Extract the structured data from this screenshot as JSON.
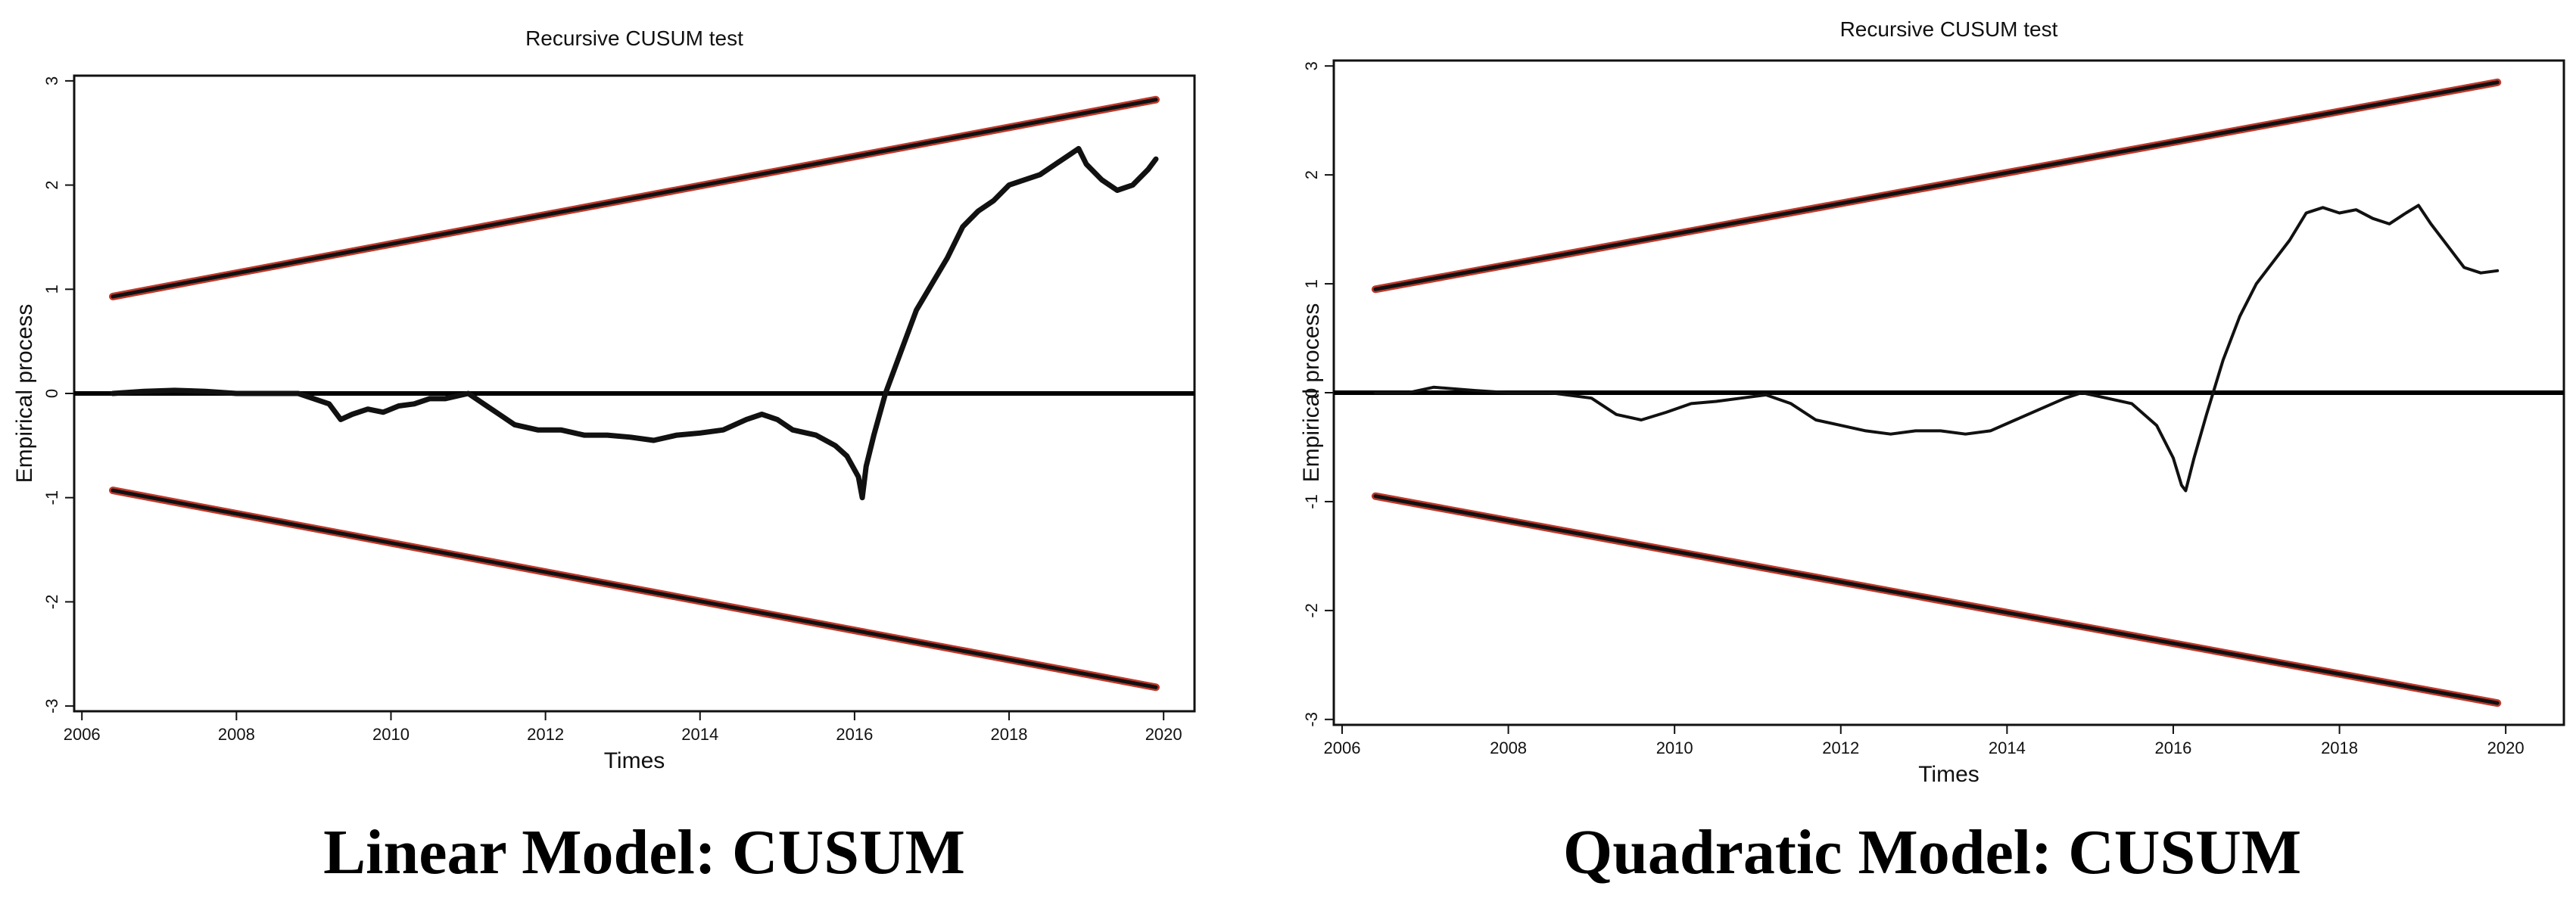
{
  "captions": [
    "Linear Model: CUSUM",
    "Quadratic Model: CUSUM"
  ],
  "chart_data": [
    {
      "type": "line",
      "title": "Recursive CUSUM test",
      "xlabel": "Times",
      "ylabel": "Empirical process",
      "xlim": [
        2005.9,
        2020.4
      ],
      "ylim": [
        -3.05,
        3.05
      ],
      "x_ticks": [
        2006,
        2008,
        2010,
        2012,
        2014,
        2016,
        2018,
        2020
      ],
      "y_ticks": [
        -3,
        -2,
        -1,
        0,
        1,
        2,
        3
      ],
      "zero_line": 0,
      "boundary_color": "#c0392b",
      "series": [
        {
          "role": "process",
          "color": "#111111",
          "x": [
            2006.4,
            2006.8,
            2007.2,
            2007.6,
            2008.0,
            2008.4,
            2008.8,
            2009.0,
            2009.2,
            2009.35,
            2009.5,
            2009.7,
            2009.9,
            2010.1,
            2010.3,
            2010.5,
            2010.7,
            2011.0,
            2011.2,
            2011.4,
            2011.6,
            2011.9,
            2012.2,
            2012.5,
            2012.8,
            2013.1,
            2013.4,
            2013.7,
            2014.0,
            2014.3,
            2014.6,
            2014.8,
            2015.0,
            2015.2,
            2015.5,
            2015.75,
            2015.9,
            2016.05,
            2016.1,
            2016.15,
            2016.25,
            2016.4,
            2016.6,
            2016.8,
            2017.0,
            2017.2,
            2017.4,
            2017.6,
            2017.8,
            2018.0,
            2018.2,
            2018.4,
            2018.6,
            2018.8,
            2018.9,
            2019.0,
            2019.2,
            2019.4,
            2019.6,
            2019.8,
            2019.9
          ],
          "y": [
            0.0,
            0.02,
            0.03,
            0.02,
            0.0,
            0.0,
            0.0,
            -0.05,
            -0.1,
            -0.25,
            -0.2,
            -0.15,
            -0.18,
            -0.12,
            -0.1,
            -0.05,
            -0.05,
            0.0,
            -0.1,
            -0.2,
            -0.3,
            -0.35,
            -0.35,
            -0.4,
            -0.4,
            -0.42,
            -0.45,
            -0.4,
            -0.38,
            -0.35,
            -0.25,
            -0.2,
            -0.25,
            -0.35,
            -0.4,
            -0.5,
            -0.6,
            -0.8,
            -1.0,
            -0.7,
            -0.4,
            0.0,
            0.4,
            0.8,
            1.05,
            1.3,
            1.6,
            1.75,
            1.85,
            2.0,
            2.05,
            2.1,
            2.2,
            2.3,
            2.35,
            2.2,
            2.05,
            1.95,
            2.0,
            2.15,
            2.25
          ]
        },
        {
          "role": "upper-boundary",
          "color": "#111111",
          "x": [
            2006.4,
            2019.9
          ],
          "y": [
            0.93,
            2.82
          ]
        },
        {
          "role": "lower-boundary",
          "color": "#111111",
          "x": [
            2006.4,
            2019.9
          ],
          "y": [
            -0.93,
            -2.82
          ]
        }
      ]
    },
    {
      "type": "line",
      "title": "Recursive CUSUM test",
      "xlabel": "Times",
      "ylabel": "Empirical process",
      "xlim": [
        2005.9,
        2020.7
      ],
      "ylim": [
        -3.05,
        3.05
      ],
      "x_ticks": [
        2006,
        2008,
        2010,
        2012,
        2014,
        2016,
        2018,
        2020
      ],
      "y_ticks": [
        -3,
        -2,
        -1,
        0,
        1,
        2,
        3
      ],
      "zero_line": 0,
      "boundary_color": "#c0392b",
      "series": [
        {
          "role": "process",
          "color": "#111111",
          "x": [
            2006.4,
            2006.8,
            2007.1,
            2007.6,
            2008.0,
            2008.5,
            2009.0,
            2009.3,
            2009.6,
            2009.9,
            2010.2,
            2010.5,
            2010.8,
            2011.1,
            2011.4,
            2011.7,
            2012.0,
            2012.3,
            2012.6,
            2012.9,
            2013.2,
            2013.5,
            2013.8,
            2014.1,
            2014.4,
            2014.7,
            2014.9,
            2015.2,
            2015.5,
            2015.8,
            2016.0,
            2016.1,
            2016.15,
            2016.25,
            2016.4,
            2016.6,
            2016.8,
            2017.0,
            2017.2,
            2017.4,
            2017.6,
            2017.8,
            2018.0,
            2018.2,
            2018.4,
            2018.6,
            2018.8,
            2018.95,
            2019.1,
            2019.3,
            2019.5,
            2019.7,
            2019.9
          ],
          "y": [
            0.0,
            0.0,
            0.05,
            0.02,
            0.0,
            0.0,
            -0.05,
            -0.2,
            -0.25,
            -0.18,
            -0.1,
            -0.08,
            -0.05,
            -0.02,
            -0.1,
            -0.25,
            -0.3,
            -0.35,
            -0.38,
            -0.35,
            -0.35,
            -0.38,
            -0.35,
            -0.25,
            -0.15,
            -0.05,
            0.0,
            -0.05,
            -0.1,
            -0.3,
            -0.6,
            -0.85,
            -0.9,
            -0.6,
            -0.2,
            0.3,
            0.7,
            1.0,
            1.2,
            1.4,
            1.65,
            1.7,
            1.65,
            1.68,
            1.6,
            1.55,
            1.65,
            1.72,
            1.55,
            1.35,
            1.15,
            1.1,
            1.12
          ]
        },
        {
          "role": "upper-boundary",
          "color": "#111111",
          "x": [
            2006.4,
            2019.9
          ],
          "y": [
            0.95,
            2.85
          ]
        },
        {
          "role": "lower-boundary",
          "color": "#111111",
          "x": [
            2006.4,
            2019.9
          ],
          "y": [
            -0.95,
            -2.85
          ]
        }
      ]
    }
  ]
}
